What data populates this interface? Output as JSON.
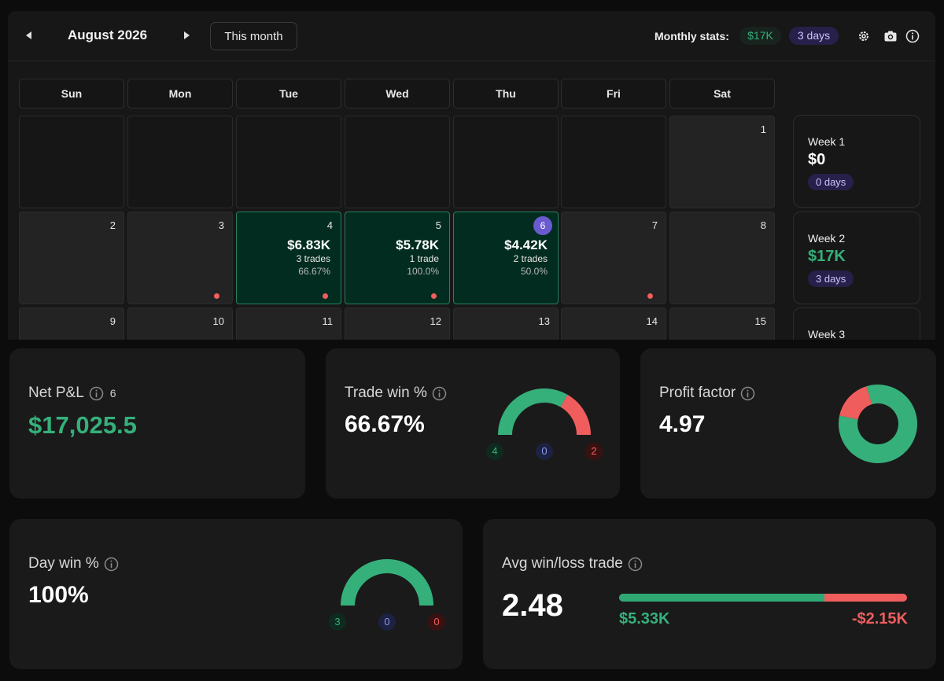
{
  "calendar": {
    "month_title": "August 2026",
    "this_month_label": "This month",
    "monthly_stats_label": "Monthly stats:",
    "monthly_pnl": "$17K",
    "monthly_days": "3 days",
    "weekdays": [
      "Sun",
      "Mon",
      "Tue",
      "Wed",
      "Thu",
      "Fri",
      "Sat"
    ],
    "days": {
      "d1": "1",
      "d2": "2",
      "d3": "3",
      "d4": "4",
      "d5": "5",
      "d6": "6",
      "d7": "7",
      "d8": "8",
      "d9": "9",
      "d10": "10",
      "d11": "11",
      "d12": "12",
      "d13": "13",
      "d14": "14",
      "d15": "15"
    },
    "trade_days": {
      "d4": {
        "pnl": "$6.83K",
        "trades": "3 trades",
        "winrate": "66.67%"
      },
      "d5": {
        "pnl": "$5.78K",
        "trades": "1 trade",
        "winrate": "100.0%"
      },
      "d6": {
        "pnl": "$4.42K",
        "trades": "2 trades",
        "winrate": "50.0%"
      }
    },
    "weeks": [
      {
        "label": "Week 1",
        "value": "$0",
        "days": "0 days"
      },
      {
        "label": "Week 2",
        "value": "$17K",
        "days": "3 days"
      },
      {
        "label": "Week 3"
      }
    ]
  },
  "net_pnl": {
    "title": "Net P&L",
    "count": "6",
    "value": "$17,025.5"
  },
  "trade_win": {
    "title": "Trade win %",
    "value": "66.67%",
    "wins": 4,
    "breakeven": 0,
    "losses": 2,
    "wins_label": "4",
    "breakeven_label": "0",
    "losses_label": "2"
  },
  "profit_factor": {
    "title": "Profit factor",
    "value": "4.97",
    "profit_share": 0.832
  },
  "day_win": {
    "title": "Day win %",
    "value": "100%",
    "wins": 3,
    "breakeven": 0,
    "losses": 0,
    "wins_label": "3",
    "breakeven_label": "0",
    "losses_label": "0"
  },
  "avg_win_loss": {
    "title": "Avg win/loss trade",
    "value": "2.48",
    "avg_win": "$5.33K",
    "avg_loss": "-$2.15K",
    "avg_win_value": 5330,
    "avg_loss_value": 2150
  },
  "colors": {
    "positive": "#35b07a",
    "negative": "#f05d5d",
    "accent": "#6a5ad0",
    "trade_day_bg": "#022c1f"
  }
}
